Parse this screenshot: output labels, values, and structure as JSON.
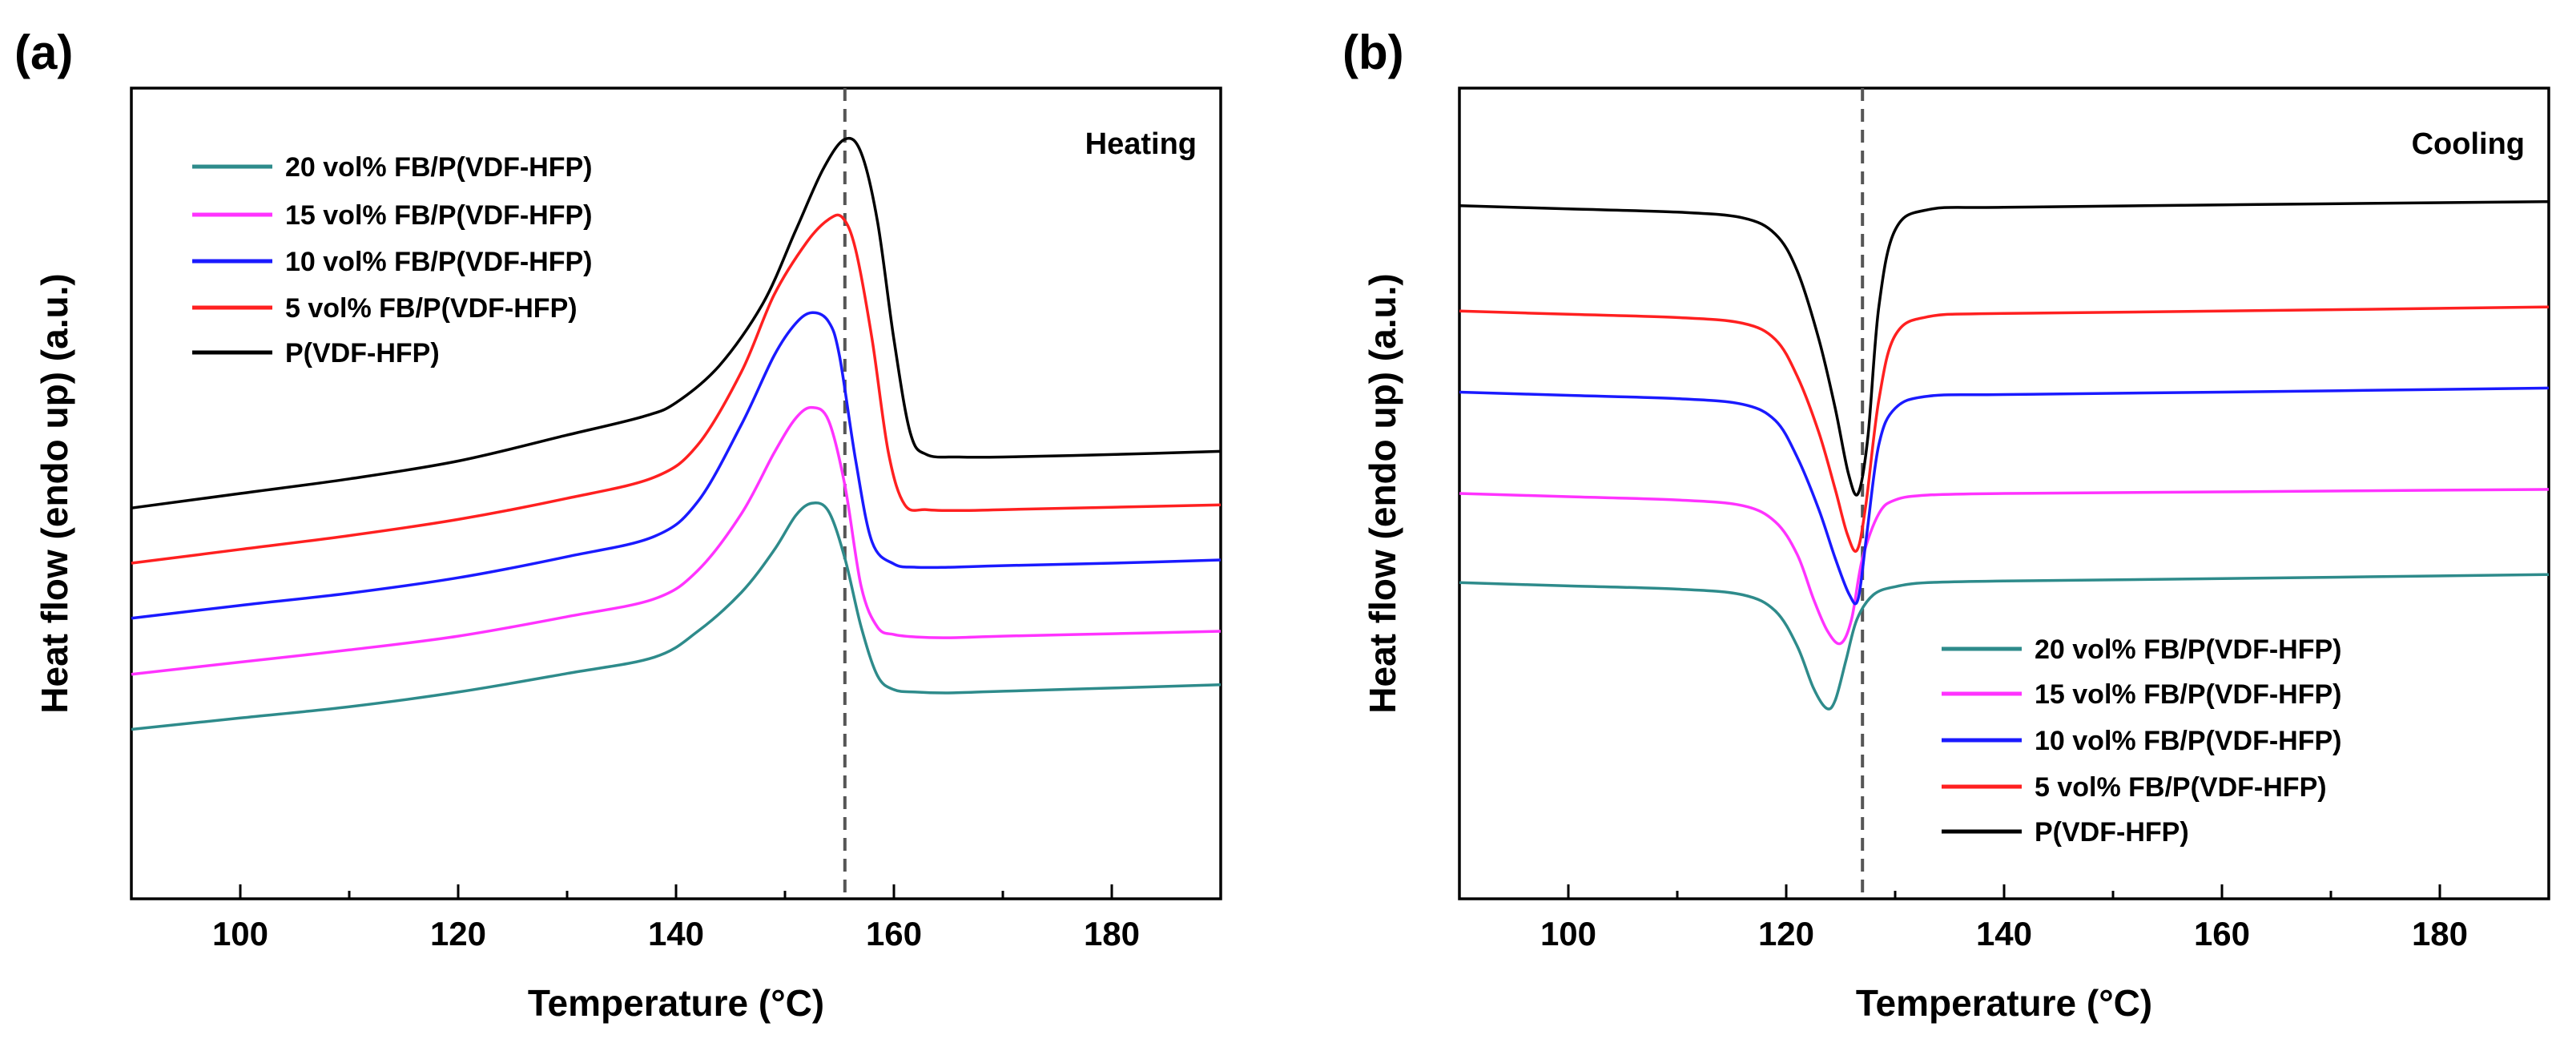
{
  "chart_data": [
    {
      "panel_label": "(a)",
      "type": "line",
      "mode_label": "Heating",
      "xlabel": "Temperature (°C)",
      "ylabel": "Heat flow (endo up) (a.u.)",
      "xlim": [
        90,
        190
      ],
      "ylim": [
        0,
        10
      ],
      "xticks": [
        100,
        120,
        140,
        160,
        180
      ],
      "xtick_labels": [
        "100",
        "120",
        "140",
        "160",
        "180"
      ],
      "reference_line_x": 155.5,
      "legend_position": "top-left",
      "series": [
        {
          "name": "20 vol% FB/P(VDF-HFP)",
          "color": "#2e8b8b",
          "x": [
            90,
            100,
            110,
            120,
            130,
            138,
            142,
            146,
            149,
            151,
            152.5,
            154,
            155.5,
            157,
            158.5,
            160,
            162,
            165,
            170,
            180,
            190
          ],
          "y": [
            2.09,
            2.23,
            2.37,
            2.55,
            2.78,
            2.98,
            3.3,
            3.78,
            4.3,
            4.73,
            4.88,
            4.78,
            4.2,
            3.35,
            2.75,
            2.58,
            2.55,
            2.54,
            2.56,
            2.6,
            2.64
          ]
        },
        {
          "name": "15 vol% FB/P(VDF-HFP)",
          "color": "#ff33ff",
          "x": [
            90,
            100,
            110,
            120,
            130,
            138,
            142,
            146,
            149,
            151,
            152.5,
            154,
            155.5,
            157,
            158.5,
            160,
            162,
            165,
            170,
            180,
            190
          ],
          "y": [
            2.77,
            2.92,
            3.07,
            3.24,
            3.48,
            3.7,
            4.05,
            4.75,
            5.5,
            5.93,
            6.06,
            5.9,
            5.1,
            3.85,
            3.35,
            3.26,
            3.23,
            3.22,
            3.24,
            3.27,
            3.3
          ]
        },
        {
          "name": "10 vol% FB/P(VDF-HFP)",
          "color": "#1a1aff",
          "x": [
            90,
            100,
            110,
            120,
            130,
            138,
            142,
            146,
            149,
            151,
            152.5,
            154,
            155,
            156.5,
            158,
            160,
            162,
            165,
            170,
            180,
            190
          ],
          "y": [
            3.46,
            3.62,
            3.77,
            3.96,
            4.22,
            4.47,
            4.9,
            5.85,
            6.7,
            7.1,
            7.23,
            7.12,
            6.7,
            5.4,
            4.4,
            4.13,
            4.09,
            4.09,
            4.11,
            4.14,
            4.18
          ]
        },
        {
          "name": "5 vol% FB/P(VDF-HFP)",
          "color": "#ff2020",
          "x": [
            90,
            100,
            110,
            120,
            130,
            138,
            142,
            146,
            149,
            152,
            154,
            155.3,
            156.5,
            158,
            159.5,
            161,
            163,
            166,
            170,
            180,
            190
          ],
          "y": [
            4.14,
            4.31,
            4.48,
            4.68,
            4.94,
            5.2,
            5.6,
            6.5,
            7.45,
            8.1,
            8.38,
            8.4,
            8.0,
            6.9,
            5.5,
            4.86,
            4.8,
            4.79,
            4.8,
            4.83,
            4.86
          ]
        },
        {
          "name": "P(VDF-HFP)",
          "color": "#000000",
          "x": [
            90,
            100,
            110,
            120,
            130,
            137,
            140,
            144,
            148,
            151,
            153.5,
            155.5,
            157,
            158.5,
            160,
            161.5,
            163,
            166,
            170,
            180,
            190
          ],
          "y": [
            4.82,
            5.0,
            5.18,
            5.4,
            5.72,
            5.95,
            6.12,
            6.58,
            7.35,
            8.25,
            9.0,
            9.37,
            9.2,
            8.35,
            6.9,
            5.75,
            5.48,
            5.45,
            5.45,
            5.48,
            5.52
          ]
        }
      ]
    },
    {
      "panel_label": "(b)",
      "type": "line",
      "mode_label": "Cooling",
      "xlabel": "Temperature (°C)",
      "ylabel": "Heat flow (endo up) (a.u.)",
      "xlim": [
        90,
        190
      ],
      "ylim": [
        0,
        10
      ],
      "xticks": [
        100,
        120,
        140,
        160,
        180
      ],
      "xtick_labels": [
        "100",
        "120",
        "140",
        "160",
        "180"
      ],
      "reference_line_x": 127,
      "legend_position": "bottom-right",
      "series": [
        {
          "name": "20 vol% FB/P(VDF-HFP)",
          "color": "#2e8b8b",
          "x": [
            90,
            100,
            110,
            116,
            119,
            121,
            122.5,
            123.7,
            124.5,
            125.5,
            126.5,
            128,
            130,
            133,
            140,
            160,
            190
          ],
          "y": [
            3.9,
            3.86,
            3.82,
            3.75,
            3.55,
            3.12,
            2.6,
            2.35,
            2.45,
            2.95,
            3.45,
            3.75,
            3.85,
            3.9,
            3.92,
            3.95,
            4.0
          ]
        },
        {
          "name": "15 vol% FB/P(VDF-HFP)",
          "color": "#ff33ff",
          "x": [
            90,
            100,
            110,
            116,
            119,
            121,
            122.5,
            123.8,
            125,
            126,
            127,
            128.5,
            130,
            133,
            140,
            160,
            190
          ],
          "y": [
            5.0,
            4.96,
            4.92,
            4.85,
            4.65,
            4.25,
            3.7,
            3.3,
            3.15,
            3.45,
            4.2,
            4.75,
            4.92,
            4.98,
            5.0,
            5.02,
            5.05
          ]
        },
        {
          "name": "10 vol% FB/P(VDF-HFP)",
          "color": "#1a1aff",
          "x": [
            90,
            100,
            110,
            116,
            119,
            121,
            123,
            124.5,
            125.8,
            126.6,
            127.4,
            128.5,
            130,
            133,
            140,
            160,
            190
          ],
          "y": [
            6.25,
            6.21,
            6.17,
            6.1,
            5.9,
            5.45,
            4.8,
            4.2,
            3.75,
            3.7,
            4.5,
            5.6,
            6.05,
            6.2,
            6.22,
            6.25,
            6.3
          ]
        },
        {
          "name": "5 vol% FB/P(VDF-HFP)",
          "color": "#ff2020",
          "x": [
            90,
            100,
            110,
            116,
            119,
            121,
            123,
            124.5,
            125.6,
            126.5,
            127.3,
            128.5,
            130,
            133,
            140,
            160,
            190
          ],
          "y": [
            7.25,
            7.21,
            7.17,
            7.1,
            6.9,
            6.45,
            5.75,
            5.05,
            4.5,
            4.3,
            4.85,
            6.15,
            6.95,
            7.18,
            7.22,
            7.25,
            7.3
          ]
        },
        {
          "name": "P(VDF-HFP)",
          "color": "#000000",
          "x": [
            90,
            100,
            110,
            116,
            119,
            121,
            123,
            124.5,
            125.7,
            126.6,
            127.5,
            128.5,
            130,
            133,
            140,
            160,
            190
          ],
          "y": [
            8.55,
            8.51,
            8.47,
            8.4,
            8.2,
            7.75,
            6.9,
            6.05,
            5.25,
            5.0,
            5.7,
            7.3,
            8.25,
            8.5,
            8.53,
            8.56,
            8.6
          ]
        }
      ]
    }
  ]
}
